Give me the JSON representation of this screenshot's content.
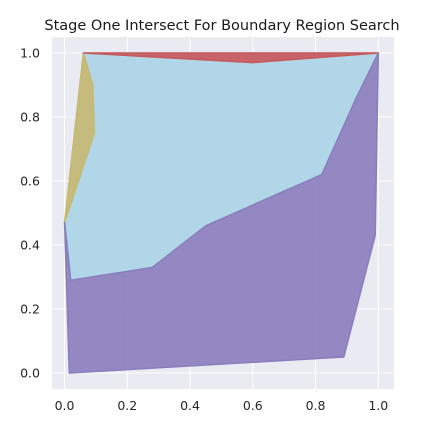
{
  "chart_data": {
    "type": "area",
    "title": "Stage One Intersect For Boundary Region Search",
    "xlabel": "",
    "ylabel": "",
    "xlim": [
      -0.04,
      1.05
    ],
    "ylim": [
      -0.05,
      1.05
    ],
    "grid": true,
    "legend": "none",
    "background_color": "#eaeaf2",
    "xticks": [
      0.0,
      0.2,
      0.4,
      0.6,
      0.8,
      1.0
    ],
    "yticks": [
      0.0,
      0.2,
      0.4,
      0.6,
      0.8,
      1.0
    ],
    "xtick_labels": [
      "0.0",
      "0.2",
      "0.4",
      "0.6",
      "0.8",
      "1.0"
    ],
    "ytick_labels": [
      "0.0",
      "0.2",
      "0.4",
      "0.6",
      "0.8",
      "1.0"
    ],
    "regions": [
      {
        "color": "#aad4e6",
        "polygon": [
          [
            0.0,
            0.47
          ],
          [
            0.06,
            1.0
          ],
          [
            1.0,
            1.0
          ],
          [
            0.93,
            0.86
          ],
          [
            0.82,
            0.62
          ],
          [
            0.45,
            0.46
          ],
          [
            0.28,
            0.33
          ],
          [
            0.02,
            0.29
          ]
        ]
      },
      {
        "color": "#c8b870",
        "polygon": [
          [
            0.0,
            0.47
          ],
          [
            0.06,
            1.0
          ],
          [
            0.09,
            0.9
          ],
          [
            0.095,
            0.75
          ]
        ]
      },
      {
        "color": "#c9585c",
        "polygon": [
          [
            0.06,
            1.0
          ],
          [
            0.6,
            0.97
          ],
          [
            1.0,
            1.0
          ]
        ]
      },
      {
        "color": "#8a7dbd",
        "polygon": [
          [
            0.0,
            0.47
          ],
          [
            0.02,
            0.29
          ],
          [
            0.28,
            0.33
          ],
          [
            0.45,
            0.46
          ],
          [
            0.82,
            0.62
          ],
          [
            0.93,
            0.86
          ],
          [
            1.0,
            1.0
          ],
          [
            0.99,
            0.43
          ],
          [
            0.89,
            0.05
          ],
          [
            0.015,
            0.0
          ]
        ]
      }
    ]
  }
}
